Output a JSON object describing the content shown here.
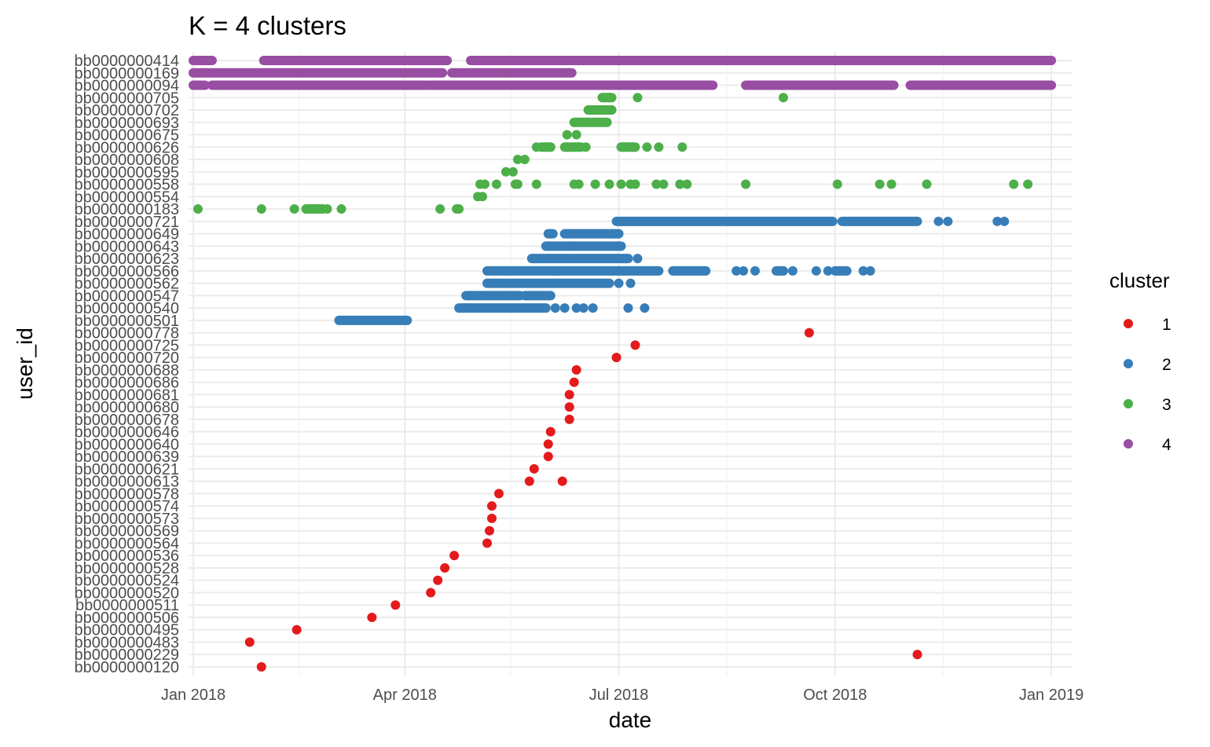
{
  "chart_data": {
    "type": "scatter",
    "title": "K = 4 clusters",
    "xlabel": "date",
    "ylabel": "user_id",
    "x_type": "date",
    "xlim": [
      "2017-12-30",
      "2019-01-10"
    ],
    "x_ticks": [
      {
        "date": "2018-01-01",
        "label": "Jan 2018"
      },
      {
        "date": "2018-04-01",
        "label": "Apr 2018"
      },
      {
        "date": "2018-07-01",
        "label": "Jul 2018"
      },
      {
        "date": "2018-10-01",
        "label": "Oct 2018"
      },
      {
        "date": "2019-01-01",
        "label": "Jan 2019"
      }
    ],
    "x_minor_ticks": [
      "2018-02-15",
      "2018-05-16",
      "2018-08-16",
      "2018-11-16"
    ],
    "grid": true,
    "legend": {
      "title": "cluster",
      "position": "right"
    },
    "colors": {
      "1": "#e41a1c",
      "2": "#377eb8",
      "3": "#4daf4a",
      "4": "#984ea3"
    },
    "users": [
      "bb0000000120",
      "bb0000000229",
      "bb0000000483",
      "bb0000000495",
      "bb0000000506",
      "bb0000000511",
      "bb0000000520",
      "bb0000000524",
      "bb0000000528",
      "bb0000000536",
      "bb0000000564",
      "bb0000000569",
      "bb0000000573",
      "bb0000000574",
      "bb0000000578",
      "bb0000000613",
      "bb0000000621",
      "bb0000000639",
      "bb0000000640",
      "bb0000000646",
      "bb0000000678",
      "bb0000000680",
      "bb0000000681",
      "bb0000000686",
      "bb0000000688",
      "bb0000000720",
      "bb0000000725",
      "bb0000000778",
      "bb0000000501",
      "bb0000000540",
      "bb0000000547",
      "bb0000000562",
      "bb0000000566",
      "bb0000000623",
      "bb0000000643",
      "bb0000000649",
      "bb0000000721",
      "bb0000000183",
      "bb0000000554",
      "bb0000000558",
      "bb0000000595",
      "bb0000000608",
      "bb0000000626",
      "bb0000000675",
      "bb0000000693",
      "bb0000000702",
      "bb0000000705",
      "bb0000000094",
      "bb0000000169",
      "bb0000000414"
    ],
    "series": [
      {
        "name": "1",
        "points": [
          {
            "user": "bb0000000120",
            "dates": [
              "2018-01-30"
            ]
          },
          {
            "user": "bb0000000229",
            "dates": [
              "2018-11-05"
            ]
          },
          {
            "user": "bb0000000483",
            "dates": [
              "2018-01-25"
            ]
          },
          {
            "user": "bb0000000495",
            "dates": [
              "2018-02-14"
            ]
          },
          {
            "user": "bb0000000506",
            "dates": [
              "2018-03-18"
            ]
          },
          {
            "user": "bb0000000511",
            "dates": [
              "2018-03-28"
            ]
          },
          {
            "user": "bb0000000520",
            "dates": [
              "2018-04-12"
            ]
          },
          {
            "user": "bb0000000524",
            "dates": [
              "2018-04-15"
            ]
          },
          {
            "user": "bb0000000528",
            "dates": [
              "2018-04-18"
            ]
          },
          {
            "user": "bb0000000536",
            "dates": [
              "2018-04-22"
            ]
          },
          {
            "user": "bb0000000564",
            "dates": [
              "2018-05-06"
            ]
          },
          {
            "user": "bb0000000569",
            "dates": [
              "2018-05-07"
            ]
          },
          {
            "user": "bb0000000573",
            "dates": [
              "2018-05-08"
            ]
          },
          {
            "user": "bb0000000574",
            "dates": [
              "2018-05-08"
            ]
          },
          {
            "user": "bb0000000578",
            "dates": [
              "2018-05-11"
            ]
          },
          {
            "user": "bb0000000613",
            "dates": [
              "2018-05-24",
              "2018-06-07"
            ]
          },
          {
            "user": "bb0000000621",
            "dates": [
              "2018-05-26"
            ]
          },
          {
            "user": "bb0000000639",
            "dates": [
              "2018-06-01"
            ]
          },
          {
            "user": "bb0000000640",
            "dates": [
              "2018-06-01"
            ]
          },
          {
            "user": "bb0000000646",
            "dates": [
              "2018-06-02"
            ]
          },
          {
            "user": "bb0000000678",
            "dates": [
              "2018-06-10"
            ]
          },
          {
            "user": "bb0000000680",
            "dates": [
              "2018-06-10"
            ]
          },
          {
            "user": "bb0000000681",
            "dates": [
              "2018-06-10"
            ]
          },
          {
            "user": "bb0000000686",
            "dates": [
              "2018-06-12"
            ]
          },
          {
            "user": "bb0000000688",
            "dates": [
              "2018-06-13"
            ]
          },
          {
            "user": "bb0000000720",
            "dates": [
              "2018-06-30"
            ]
          },
          {
            "user": "bb0000000725",
            "dates": [
              "2018-07-08"
            ]
          },
          {
            "user": "bb0000000778",
            "dates": [
              "2018-09-20"
            ]
          }
        ],
        "ranges": []
      },
      {
        "name": "2",
        "points": [
          {
            "user": "bb0000000540",
            "dates": [
              "2018-06-04",
              "2018-06-08",
              "2018-06-13",
              "2018-06-16",
              "2018-06-20",
              "2018-07-05",
              "2018-07-12"
            ]
          },
          {
            "user": "bb0000000547",
            "dates": [
              "2018-05-29"
            ]
          },
          {
            "user": "bb0000000562",
            "dates": [
              "2018-07-01",
              "2018-07-06"
            ]
          },
          {
            "user": "bb0000000566",
            "dates": [
              "2018-08-20",
              "2018-08-23",
              "2018-08-28",
              "2018-09-09",
              "2018-09-13",
              "2018-09-23",
              "2018-09-28",
              "2018-10-13",
              "2018-10-16"
            ]
          },
          {
            "user": "bb0000000623",
            "dates": [
              "2018-07-09"
            ]
          },
          {
            "user": "bb0000000721",
            "dates": [
              "2018-11-14",
              "2018-11-18",
              "2018-12-09",
              "2018-12-12"
            ]
          }
        ],
        "ranges": [
          {
            "user": "bb0000000501",
            "start": "2018-03-04",
            "end": "2018-04-02"
          },
          {
            "user": "bb0000000540",
            "start": "2018-04-24",
            "end": "2018-05-31"
          },
          {
            "user": "bb0000000547",
            "start": "2018-04-27",
            "end": "2018-05-20"
          },
          {
            "user": "bb0000000547",
            "start": "2018-05-22",
            "end": "2018-06-02"
          },
          {
            "user": "bb0000000562",
            "start": "2018-05-06",
            "end": "2018-06-05"
          },
          {
            "user": "bb0000000562",
            "start": "2018-06-05",
            "end": "2018-06-27"
          },
          {
            "user": "bb0000000566",
            "start": "2018-05-06",
            "end": "2018-06-05"
          },
          {
            "user": "bb0000000566",
            "start": "2018-06-05",
            "end": "2018-07-18"
          },
          {
            "user": "bb0000000566",
            "start": "2018-07-24",
            "end": "2018-08-07"
          },
          {
            "user": "bb0000000566",
            "start": "2018-09-06",
            "end": "2018-09-09"
          },
          {
            "user": "bb0000000566",
            "start": "2018-10-01",
            "end": "2018-10-06"
          },
          {
            "user": "bb0000000623",
            "start": "2018-05-25",
            "end": "2018-06-21"
          },
          {
            "user": "bb0000000623",
            "start": "2018-06-21",
            "end": "2018-07-05"
          },
          {
            "user": "bb0000000643",
            "start": "2018-05-31",
            "end": "2018-06-10"
          },
          {
            "user": "bb0000000643",
            "start": "2018-06-10",
            "end": "2018-07-02"
          },
          {
            "user": "bb0000000649",
            "start": "2018-06-01",
            "end": "2018-06-03"
          },
          {
            "user": "bb0000000649",
            "start": "2018-06-08",
            "end": "2018-06-28"
          },
          {
            "user": "bb0000000649",
            "start": "2018-06-28",
            "end": "2018-07-01"
          },
          {
            "user": "bb0000000721",
            "start": "2018-06-30",
            "end": "2018-09-30"
          },
          {
            "user": "bb0000000721",
            "start": "2018-10-04",
            "end": "2018-11-05"
          }
        ]
      },
      {
        "name": "3",
        "points": [
          {
            "user": "bb0000000183",
            "dates": [
              "2018-01-03",
              "2018-01-30",
              "2018-02-13",
              "2018-02-18",
              "2018-02-19",
              "2018-02-23",
              "2018-02-25",
              "2018-02-27",
              "2018-03-05",
              "2018-04-16",
              "2018-04-23",
              "2018-04-24"
            ]
          },
          {
            "user": "bb0000000554",
            "dates": [
              "2018-05-02",
              "2018-05-04"
            ]
          },
          {
            "user": "bb0000000558",
            "dates": [
              "2018-05-03",
              "2018-05-05",
              "2018-05-10",
              "2018-05-18",
              "2018-05-19",
              "2018-05-27",
              "2018-06-12",
              "2018-06-14",
              "2018-06-21",
              "2018-06-27",
              "2018-07-02",
              "2018-07-06",
              "2018-07-08",
              "2018-07-17",
              "2018-07-20",
              "2018-07-27",
              "2018-07-30",
              "2018-08-24",
              "2018-10-02",
              "2018-10-20",
              "2018-10-25",
              "2018-11-09",
              "2018-12-16",
              "2018-12-22"
            ]
          },
          {
            "user": "bb0000000595",
            "dates": [
              "2018-05-14",
              "2018-05-17"
            ]
          },
          {
            "user": "bb0000000608",
            "dates": [
              "2018-05-19",
              "2018-05-22"
            ]
          },
          {
            "user": "bb0000000626",
            "dates": [
              "2018-05-27",
              "2018-06-02",
              "2018-06-09",
              "2018-06-14",
              "2018-06-17",
              "2018-07-03",
              "2018-07-07",
              "2018-07-13",
              "2018-07-18",
              "2018-07-28"
            ]
          },
          {
            "user": "bb0000000675",
            "dates": [
              "2018-06-09",
              "2018-06-13"
            ]
          },
          {
            "user": "bb0000000705",
            "dates": [
              "2018-06-24",
              "2018-06-27",
              "2018-07-09",
              "2018-09-09"
            ]
          }
        ],
        "ranges": [
          {
            "user": "bb0000000183",
            "start": "2018-02-18",
            "end": "2018-02-25"
          },
          {
            "user": "bb0000000626",
            "start": "2018-05-29",
            "end": "2018-06-02"
          },
          {
            "user": "bb0000000626",
            "start": "2018-06-08",
            "end": "2018-06-15"
          },
          {
            "user": "bb0000000626",
            "start": "2018-07-02",
            "end": "2018-07-08"
          },
          {
            "user": "bb0000000693",
            "start": "2018-06-12",
            "end": "2018-06-26"
          },
          {
            "user": "bb0000000702",
            "start": "2018-06-18",
            "end": "2018-06-28"
          },
          {
            "user": "bb0000000705",
            "start": "2018-06-24",
            "end": "2018-06-28"
          }
        ]
      },
      {
        "name": "4",
        "points": [],
        "ranges": [
          {
            "user": "bb0000000094",
            "start": "2018-01-01",
            "end": "2018-01-06"
          },
          {
            "user": "bb0000000094",
            "start": "2018-01-09",
            "end": "2018-04-10"
          },
          {
            "user": "bb0000000094",
            "start": "2018-04-11",
            "end": "2018-05-05"
          },
          {
            "user": "bb0000000094",
            "start": "2018-05-05",
            "end": "2018-08-10"
          },
          {
            "user": "bb0000000094",
            "start": "2018-08-24",
            "end": "2018-09-26"
          },
          {
            "user": "bb0000000094",
            "start": "2018-09-26",
            "end": "2018-10-26"
          },
          {
            "user": "bb0000000094",
            "start": "2018-11-02",
            "end": "2018-11-16"
          },
          {
            "user": "bb0000000094",
            "start": "2018-11-16",
            "end": "2019-01-01"
          },
          {
            "user": "bb0000000169",
            "start": "2018-01-01",
            "end": "2018-04-17"
          },
          {
            "user": "bb0000000169",
            "start": "2018-04-21",
            "end": "2018-06-11"
          },
          {
            "user": "bb0000000414",
            "start": "2018-01-01",
            "end": "2018-01-09"
          },
          {
            "user": "bb0000000414",
            "start": "2018-01-31",
            "end": "2018-04-19"
          },
          {
            "user": "bb0000000414",
            "start": "2018-04-29",
            "end": "2019-01-01"
          }
        ]
      }
    ]
  }
}
